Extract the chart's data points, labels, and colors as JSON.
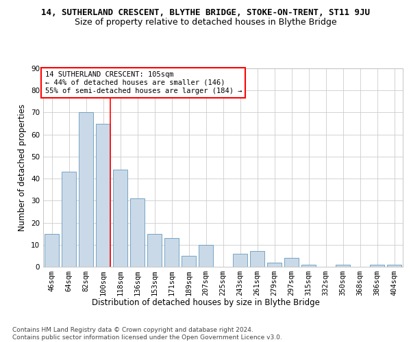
{
  "title_line1": "14, SUTHERLAND CRESCENT, BLYTHE BRIDGE, STOKE-ON-TRENT, ST11 9JU",
  "title_line2": "Size of property relative to detached houses in Blythe Bridge",
  "xlabel": "Distribution of detached houses by size in Blythe Bridge",
  "ylabel": "Number of detached properties",
  "categories": [
    "46sqm",
    "64sqm",
    "82sqm",
    "100sqm",
    "118sqm",
    "136sqm",
    "153sqm",
    "171sqm",
    "189sqm",
    "207sqm",
    "225sqm",
    "243sqm",
    "261sqm",
    "279sqm",
    "297sqm",
    "315sqm",
    "332sqm",
    "350sqm",
    "368sqm",
    "386sqm",
    "404sqm"
  ],
  "values": [
    15,
    43,
    70,
    65,
    44,
    31,
    15,
    13,
    5,
    10,
    0,
    6,
    7,
    2,
    4,
    1,
    0,
    1,
    0,
    1,
    1
  ],
  "bar_color": "#c9d9e8",
  "bar_edge_color": "#6699bb",
  "red_line_x": 3.43,
  "annotation_text": "14 SUTHERLAND CRESCENT: 105sqm\n← 44% of detached houses are smaller (146)\n55% of semi-detached houses are larger (184) →",
  "annotation_box_color": "white",
  "annotation_box_edge_color": "red",
  "ylim": [
    0,
    90
  ],
  "yticks": [
    0,
    10,
    20,
    30,
    40,
    50,
    60,
    70,
    80,
    90
  ],
  "grid_color": "#cccccc",
  "background_color": "white",
  "footer_text": "Contains HM Land Registry data © Crown copyright and database right 2024.\nContains public sector information licensed under the Open Government Licence v3.0.",
  "title_fontsize": 9,
  "subtitle_fontsize": 9,
  "axis_label_fontsize": 8.5,
  "tick_fontsize": 7.5,
  "annotation_fontsize": 7.5,
  "footer_fontsize": 6.5
}
